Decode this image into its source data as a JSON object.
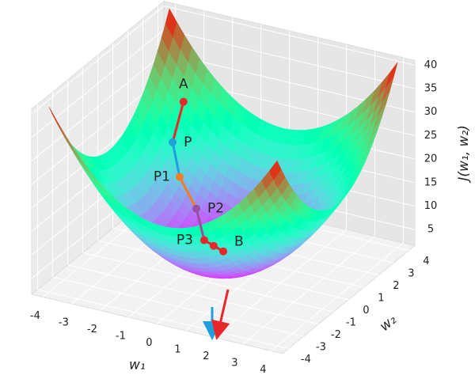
{
  "chart_data": {
    "type": "surface3d",
    "xlabel": "w₁",
    "ylabel": "w₂",
    "zlabel": "J(w₁, w₂)",
    "xlim": [
      -4.4,
      4.4
    ],
    "ylim": [
      -4.4,
      4.4
    ],
    "zlim": [
      1.6,
      41
    ],
    "xticks": [
      -4,
      -3,
      -2,
      -1,
      0,
      1,
      2,
      3,
      4
    ],
    "yticks": [
      -4,
      -3,
      -2,
      -1,
      0,
      1,
      2,
      3,
      4
    ],
    "zticks": [
      5,
      10,
      15,
      20,
      25,
      30,
      35,
      40
    ],
    "grid": true,
    "colormap": "rainbow",
    "points": {
      "labels": [
        "A",
        "P",
        "P1",
        "P2",
        "P3",
        null,
        "B"
      ],
      "w1": [
        -2.24,
        -2.44,
        -2.03,
        -1.46,
        -0.98,
        -0.69,
        -0.4
      ],
      "w2": [
        1.6,
        1.26,
        0.95,
        0.98,
        0.59,
        0.67,
        0.76
      ],
      "J": [
        30,
        22,
        16,
        10,
        5,
        4,
        3
      ],
      "colors": [
        "#e8272a",
        "#1ea0dc",
        "#ef7f22",
        "#9a4fa0",
        "#e8272a",
        "#e8272a",
        "#e8272a"
      ],
      "segment_colors": [
        "#e8272a",
        "#1ea0dc",
        "#ef7f22",
        "#9a4fa0",
        "#e8272a",
        "#e8272a"
      ]
    }
  }
}
